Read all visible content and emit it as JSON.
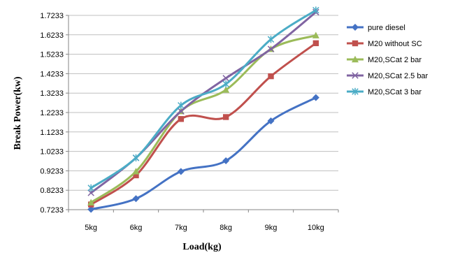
{
  "chart_data": {
    "type": "line",
    "title": "",
    "xlabel": "Load(kg)",
    "ylabel": "Break Power(kw)",
    "categories": [
      "5kg",
      "6kg",
      "7kg",
      "8kg",
      "9kg",
      "10kg"
    ],
    "y_ticks": [
      "0.7233",
      "0.8233",
      "0.9233",
      "1.0233",
      "1.1233",
      "1.2233",
      "1.3233",
      "1.4233",
      "1.5233",
      "1.6233",
      "1.7233"
    ],
    "ylim": [
      0.7233,
      1.7233
    ],
    "grid": "horizontal",
    "smooth": true,
    "legend_position": "right",
    "series": [
      {
        "name": "pure diesel",
        "color": "#4472C4",
        "marker": "diamond",
        "values": [
          0.725,
          0.78,
          0.92,
          0.975,
          1.18,
          1.3
        ]
      },
      {
        "name": "M20 without SC",
        "color": "#C0504D",
        "marker": "square",
        "values": [
          0.75,
          0.9,
          1.19,
          1.2,
          1.41,
          1.58
        ]
      },
      {
        "name": "M20,SCat 2 bar",
        "color": "#9BBB59",
        "marker": "triangle",
        "values": [
          0.76,
          0.92,
          1.23,
          1.34,
          1.55,
          1.62
        ]
      },
      {
        "name": "M20,SCat 2.5 bar",
        "color": "#8064A2",
        "marker": "x",
        "values": [
          0.81,
          0.99,
          1.23,
          1.4,
          1.55,
          1.74
        ]
      },
      {
        "name": "M20,SCat 3 bar",
        "color": "#4BACC6",
        "marker": "star",
        "values": [
          0.835,
          0.99,
          1.26,
          1.37,
          1.6,
          1.75
        ]
      }
    ]
  }
}
